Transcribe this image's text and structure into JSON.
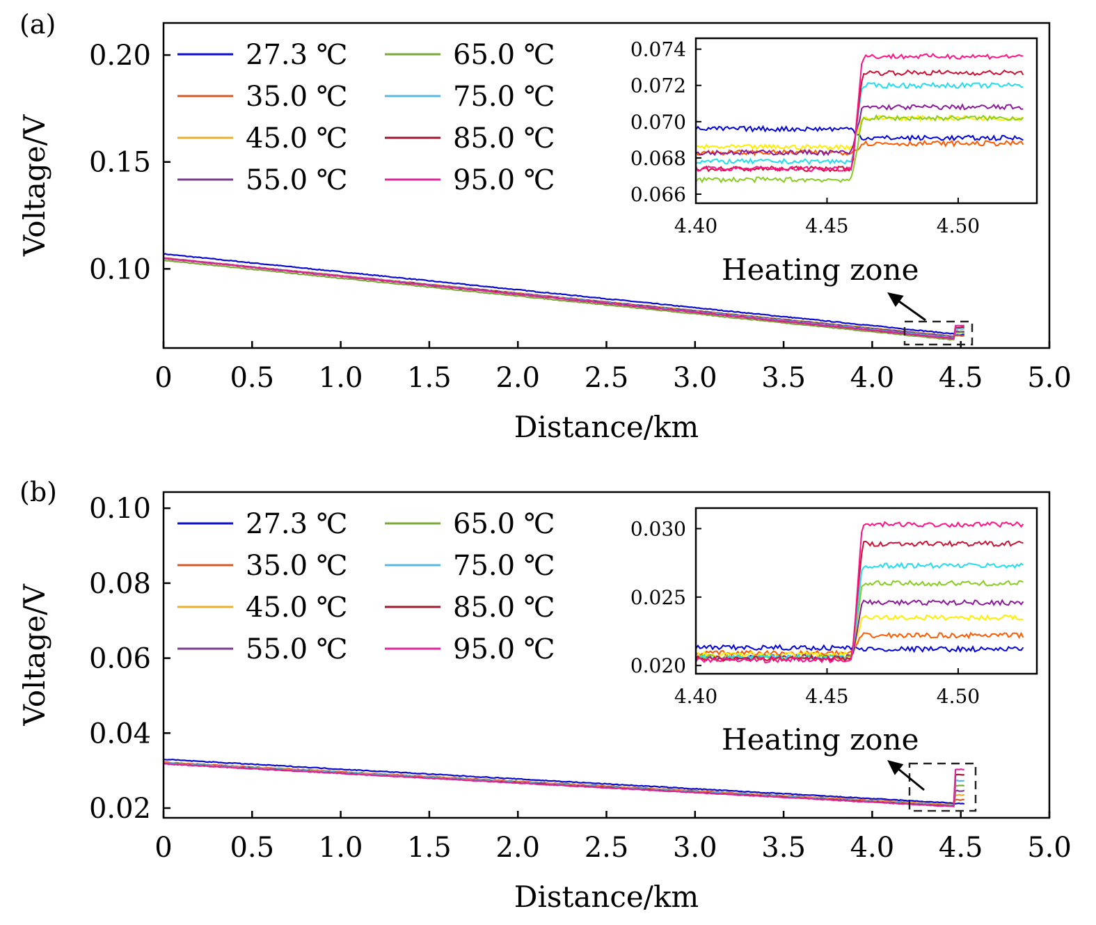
{
  "chart_data": [
    {
      "panel_label": "(a)",
      "type": "line",
      "xlabel": "Distance/km",
      "ylabel": "Voltage/V",
      "xlim": [
        0,
        5.0
      ],
      "ylim": [
        0.063,
        0.215
      ],
      "xticks": [
        "0",
        "0.5",
        "1.0",
        "1.5",
        "2.0",
        "2.5",
        "3.0",
        "3.5",
        "4.0",
        "4.5",
        "5.0"
      ],
      "yticks": [
        "0.10",
        "0.15",
        "0.20"
      ],
      "annotation": "Heating zone",
      "legend_placement": "top-left",
      "heating_zone_start_km": 4.46,
      "series": [
        {
          "name": "27.3 ℃",
          "color": "#0a0ad0",
          "inset_color": "#0000dd",
          "v_at_0": 0.107,
          "v_before_heating": 0.0696,
          "v_in_heating": 0.0691
        },
        {
          "name": "35.0 ℃",
          "color": "#d45a24",
          "inset_color": "#ff5a00",
          "v_at_0": 0.105,
          "v_before_heating": 0.0683,
          "v_in_heating": 0.0688
        },
        {
          "name": "45.0 ℃",
          "color": "#e8b030",
          "inset_color": "#ffee00",
          "v_at_0": 0.105,
          "v_before_heating": 0.0686,
          "v_in_heating": 0.0702
        },
        {
          "name": "55.0 ℃",
          "color": "#7a3a8c",
          "inset_color": "#8b1a9b",
          "v_at_0": 0.105,
          "v_before_heating": 0.0683,
          "v_in_heating": 0.0708
        },
        {
          "name": "65.0 ℃",
          "color": "#7aa83a",
          "inset_color": "#88cc22",
          "v_at_0": 0.104,
          "v_before_heating": 0.0668,
          "v_in_heating": 0.0702
        },
        {
          "name": "75.0 ℃",
          "color": "#5ab8e0",
          "inset_color": "#22ddee",
          "v_at_0": 0.105,
          "v_before_heating": 0.0678,
          "v_in_heating": 0.072
        },
        {
          "name": "85.0 ℃",
          "color": "#9a1a30",
          "inset_color": "#cc1133",
          "v_at_0": 0.105,
          "v_before_heating": 0.0674,
          "v_in_heating": 0.0727
        },
        {
          "name": "95.0 ℃",
          "color": "#e0259a",
          "inset_color": "#ff1188",
          "v_at_0": 0.105,
          "v_before_heating": 0.0674,
          "v_in_heating": 0.0736
        }
      ],
      "inset": {
        "xlim": [
          4.4,
          4.53
        ],
        "ylim": [
          0.0655,
          0.0746
        ],
        "xticks": [
          "4.40",
          "4.45",
          "4.50"
        ],
        "yticks": [
          "0.066",
          "0.068",
          "0.070",
          "0.072",
          "0.074"
        ]
      }
    },
    {
      "panel_label": "(b)",
      "type": "line",
      "xlabel": "Distance/km",
      "ylabel": "Voltage/V",
      "xlim": [
        0,
        5.0
      ],
      "ylim": [
        0.0174,
        0.1043
      ],
      "xticks": [
        "0",
        "0.5",
        "1.0",
        "1.5",
        "2.0",
        "2.5",
        "3.0",
        "3.5",
        "4.0",
        "4.5",
        "5.0"
      ],
      "yticks": [
        "0.02",
        "0.04",
        "0.06",
        "0.08",
        "0.10"
      ],
      "annotation": "Heating zone",
      "legend_placement": "top-left",
      "heating_zone_start_km": 4.46,
      "series": [
        {
          "name": "27.3 ℃",
          "color": "#0a0ad0",
          "inset_color": "#0000dd",
          "v_at_0": 0.033,
          "v_before_heating": 0.0213,
          "v_in_heating": 0.0212
        },
        {
          "name": "35.0 ℃",
          "color": "#d45a24",
          "inset_color": "#ff5a00",
          "v_at_0": 0.0322,
          "v_before_heating": 0.0209,
          "v_in_heating": 0.0222
        },
        {
          "name": "45.0 ℃",
          "color": "#e8b030",
          "inset_color": "#ffee00",
          "v_at_0": 0.032,
          "v_before_heating": 0.0208,
          "v_in_heating": 0.0235
        },
        {
          "name": "55.0 ℃",
          "color": "#7a3a8c",
          "inset_color": "#8b1a9b",
          "v_at_0": 0.032,
          "v_before_heating": 0.0206,
          "v_in_heating": 0.0246
        },
        {
          "name": "65.0 ℃",
          "color": "#7aa83a",
          "inset_color": "#88cc22",
          "v_at_0": 0.032,
          "v_before_heating": 0.0206,
          "v_in_heating": 0.026
        },
        {
          "name": "75.0 ℃",
          "color": "#5ab8e0",
          "inset_color": "#22ddee",
          "v_at_0": 0.032,
          "v_before_heating": 0.0206,
          "v_in_heating": 0.0273
        },
        {
          "name": "85.0 ℃",
          "color": "#9a1a30",
          "inset_color": "#cc1133",
          "v_at_0": 0.0318,
          "v_before_heating": 0.0205,
          "v_in_heating": 0.0289
        },
        {
          "name": "95.0 ℃",
          "color": "#e0259a",
          "inset_color": "#ff1188",
          "v_at_0": 0.0318,
          "v_before_heating": 0.0204,
          "v_in_heating": 0.0303
        }
      ],
      "inset": {
        "xlim": [
          4.4,
          4.53
        ],
        "ylim": [
          0.0194,
          0.0315
        ],
        "xticks": [
          "4.40",
          "4.45",
          "4.50"
        ],
        "yticks": [
          "0.020",
          "0.025",
          "0.030"
        ]
      }
    }
  ]
}
